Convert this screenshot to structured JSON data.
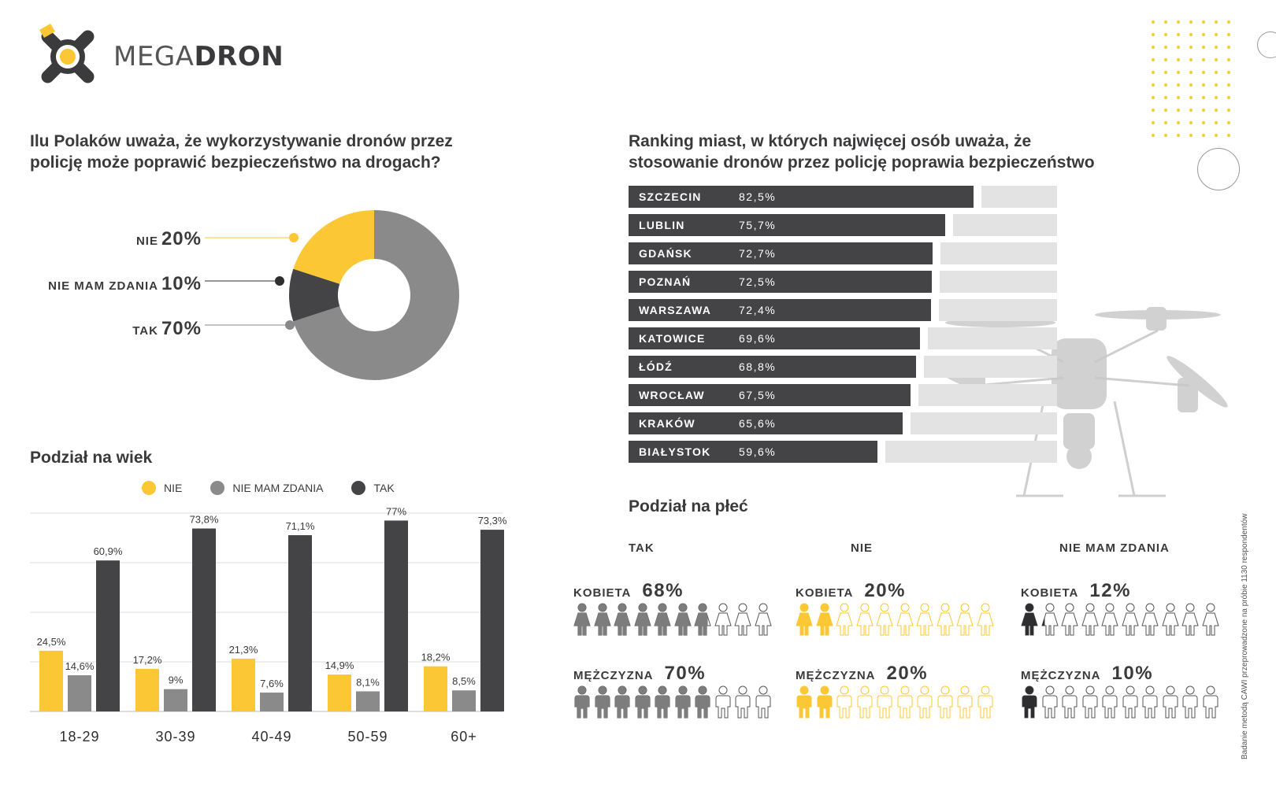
{
  "brand": {
    "name_light": "MEGA",
    "name_bold": "DRON"
  },
  "colors": {
    "yellow": "#fcc734",
    "gray": "#8a8a8a",
    "dark": "#444446",
    "light": "#e3e3e3"
  },
  "survey": {
    "title_line1": "Ilu Polaków uważa, że wykorzystywanie dronów przez",
    "title_line2": "policję może poprawić bezpieczeństwo na drogach?",
    "items": [
      {
        "label": "NIE",
        "pct": "20%",
        "value": 20
      },
      {
        "label": "NIE MAM ZDANIA",
        "pct": "10%",
        "value": 10
      },
      {
        "label": "TAK",
        "pct": "70%",
        "value": 70
      }
    ]
  },
  "age": {
    "title": "Podział na wiek",
    "legend": [
      "NIE",
      "NIE MAM ZDANIA",
      "TAK"
    ]
  },
  "ranking": {
    "title_line1": "Ranking miast, w których najwięcej osób uważa, że",
    "title_line2": "stosowanie dronów przez policję poprawia bezpieczeństwo",
    "items": [
      {
        "city": "SZCZECIN",
        "label": "82,5%",
        "value": 82.5
      },
      {
        "city": "LUBLIN",
        "label": "75,7%",
        "value": 75.7
      },
      {
        "city": "GDAŃSK",
        "label": "72,7%",
        "value": 72.7
      },
      {
        "city": "POZNAŃ",
        "label": "72,5%",
        "value": 72.5
      },
      {
        "city": "WARSZAWA",
        "label": "72,4%",
        "value": 72.4
      },
      {
        "city": "KATOWICE",
        "label": "69,6%",
        "value": 69.6
      },
      {
        "city": "ŁÓDŹ",
        "label": "68,8%",
        "value": 68.8
      },
      {
        "city": "WROCŁAW",
        "label": "67,5%",
        "value": 67.5
      },
      {
        "city": "KRAKÓW",
        "label": "65,6%",
        "value": 65.6
      },
      {
        "city": "BIAŁYSTOK",
        "label": "59,6%",
        "value": 59.6
      }
    ]
  },
  "gender": {
    "title": "Podział na płeć",
    "groups": [
      {
        "head": "TAK",
        "women_label": "KOBIETA",
        "women_pct": "68%",
        "women_value": 68,
        "men_label": "MĘŻCZYZNA",
        "men_pct": "70%",
        "men_value": 70,
        "color": "#7d7d7d"
      },
      {
        "head": "NIE",
        "women_label": "KOBIETA",
        "women_pct": "20%",
        "women_value": 20,
        "men_label": "MĘŻCZYZNA",
        "men_pct": "20%",
        "men_value": 20,
        "color": "#fcc734"
      },
      {
        "head": "NIE MAM ZDANIA",
        "women_label": "KOBIETA",
        "women_pct": "12%",
        "women_value": 12,
        "men_label": "MĘŻCZYZNA",
        "men_pct": "10%",
        "men_value": 10,
        "color": "#2e2e30"
      }
    ]
  },
  "footnote": "Badanie metodą CAWI przeprowadzone na próbie 1130 respondentów",
  "chart_data": [
    {
      "type": "pie",
      "title": "Ilu Polaków uważa, że wykorzystywanie dronów przez policję może poprawić bezpieczeństwo na drogach?",
      "categories": [
        "NIE",
        "NIE MAM ZDANIA",
        "TAK"
      ],
      "values": [
        20,
        10,
        70
      ]
    },
    {
      "type": "bar",
      "title": "Podział na wiek",
      "categories": [
        "18-29",
        "30-39",
        "40-49",
        "50-59",
        "60+"
      ],
      "series": [
        {
          "name": "NIE",
          "values": [
            24.5,
            17.2,
            21.3,
            14.9,
            18.2
          ],
          "labels": [
            "24,5%",
            "17,2%",
            "21,3%",
            "14,9%",
            "18,2%"
          ]
        },
        {
          "name": "NIE MAM ZDANIA",
          "values": [
            14.6,
            9,
            7.6,
            8.1,
            8.5
          ],
          "labels": [
            "14,6%",
            "9%",
            "7,6%",
            "8,1%",
            "8,5%"
          ]
        },
        {
          "name": "TAK",
          "values": [
            60.9,
            73.8,
            71.1,
            77,
            73.3
          ],
          "labels": [
            "60,9%",
            "73,8%",
            "71,1%",
            "77%",
            "73,3%"
          ]
        }
      ],
      "ylim": [
        0,
        80
      ],
      "grid": true,
      "legend": "top"
    },
    {
      "type": "bar",
      "title": "Ranking miast, w których najwięcej osób uważa, że stosowanie dronów przez policję poprawia bezpieczeństwo",
      "orientation": "horizontal",
      "categories": [
        "SZCZECIN",
        "LUBLIN",
        "GDAŃSK",
        "POZNAŃ",
        "WARSZAWA",
        "KATOWICE",
        "ŁÓDŹ",
        "WROCŁAW",
        "KRAKÓW",
        "BIAŁYSTOK"
      ],
      "values": [
        82.5,
        75.7,
        72.7,
        72.5,
        72.4,
        69.6,
        68.8,
        67.5,
        65.6,
        59.6
      ]
    }
  ]
}
